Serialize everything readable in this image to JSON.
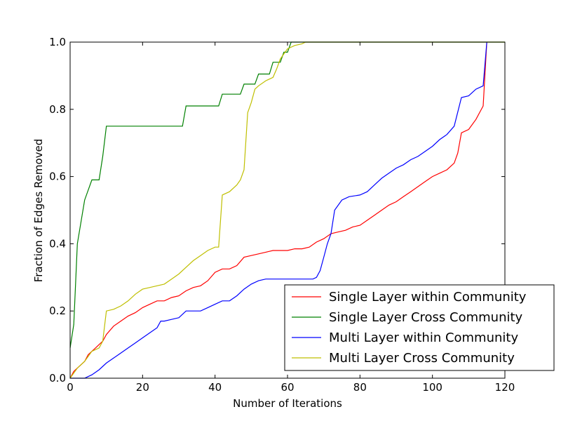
{
  "chart_data": {
    "type": "line",
    "title": "",
    "xlabel": "Number of Iterations",
    "ylabel": "Fraction of Edges Removed",
    "xlim": [
      0,
      120
    ],
    "ylim": [
      0,
      1.0
    ],
    "xticks": [
      0,
      20,
      40,
      60,
      80,
      100,
      120
    ],
    "xtick_labels": [
      "0",
      "20",
      "40",
      "60",
      "80",
      "100",
      "120"
    ],
    "yticks": [
      0.0,
      0.2,
      0.4,
      0.6,
      0.8,
      1.0
    ],
    "ytick_labels": [
      "0.0",
      "0.2",
      "0.4",
      "0.6",
      "0.8",
      "1.0"
    ],
    "grid": false,
    "legend_position": "lower-right",
    "series": [
      {
        "name": "Single Layer within Community",
        "color": "#ff0000",
        "x": [
          0,
          1,
          2,
          3,
          4,
          5,
          6,
          7,
          8,
          9,
          10,
          12,
          14,
          16,
          18,
          20,
          22,
          24,
          26,
          28,
          30,
          32,
          34,
          36,
          38,
          40,
          42,
          44,
          46,
          48,
          50,
          52,
          54,
          56,
          58,
          60,
          62,
          64,
          66,
          68,
          70,
          72,
          74,
          76,
          78,
          80,
          82,
          84,
          86,
          88,
          90,
          92,
          94,
          96,
          98,
          100,
          102,
          104,
          106,
          107,
          108,
          110,
          112,
          114,
          115
        ],
        "y": [
          0.0,
          0.02,
          0.03,
          0.04,
          0.05,
          0.07,
          0.08,
          0.09,
          0.1,
          0.11,
          0.13,
          0.155,
          0.17,
          0.185,
          0.195,
          0.21,
          0.22,
          0.23,
          0.23,
          0.24,
          0.245,
          0.26,
          0.27,
          0.275,
          0.29,
          0.315,
          0.325,
          0.325,
          0.335,
          0.36,
          0.365,
          0.37,
          0.375,
          0.38,
          0.38,
          0.38,
          0.385,
          0.385,
          0.39,
          0.405,
          0.415,
          0.43,
          0.435,
          0.44,
          0.45,
          0.455,
          0.47,
          0.485,
          0.5,
          0.515,
          0.525,
          0.54,
          0.555,
          0.57,
          0.585,
          0.6,
          0.61,
          0.62,
          0.64,
          0.67,
          0.73,
          0.74,
          0.77,
          0.81,
          1.0
        ]
      },
      {
        "name": "Single Layer Cross Community",
        "color": "#008000",
        "x": [
          0,
          1,
          2,
          4,
          6,
          8,
          9,
          10,
          20,
          31,
          32,
          41,
          42,
          47,
          48,
          51,
          52,
          55,
          56,
          58,
          59,
          60,
          61,
          120
        ],
        "y": [
          0.09,
          0.16,
          0.4,
          0.53,
          0.59,
          0.59,
          0.66,
          0.75,
          0.75,
          0.75,
          0.81,
          0.81,
          0.845,
          0.845,
          0.875,
          0.875,
          0.905,
          0.905,
          0.94,
          0.94,
          0.97,
          0.97,
          1.0,
          1.0
        ]
      },
      {
        "name": "Multi Layer within Community",
        "color": "#0000ff",
        "x": [
          0,
          4,
          6,
          8,
          10,
          12,
          14,
          16,
          18,
          20,
          22,
          24,
          25,
          26,
          28,
          30,
          32,
          34,
          36,
          38,
          40,
          42,
          44,
          46,
          48,
          50,
          52,
          54,
          56,
          60,
          64,
          67,
          68,
          69,
          70,
          71,
          72,
          73,
          75,
          77,
          80,
          82,
          84,
          86,
          88,
          90,
          92,
          94,
          96,
          98,
          100,
          102,
          104,
          106,
          108,
          110,
          112,
          114,
          115
        ],
        "y": [
          0.0,
          0.0,
          0.01,
          0.025,
          0.045,
          0.06,
          0.075,
          0.09,
          0.105,
          0.12,
          0.135,
          0.15,
          0.17,
          0.17,
          0.175,
          0.18,
          0.2,
          0.2,
          0.2,
          0.21,
          0.22,
          0.23,
          0.23,
          0.245,
          0.265,
          0.28,
          0.29,
          0.295,
          0.295,
          0.295,
          0.295,
          0.295,
          0.3,
          0.32,
          0.36,
          0.4,
          0.43,
          0.5,
          0.53,
          0.54,
          0.545,
          0.555,
          0.575,
          0.595,
          0.61,
          0.625,
          0.635,
          0.65,
          0.66,
          0.675,
          0.69,
          0.71,
          0.725,
          0.75,
          0.835,
          0.84,
          0.86,
          0.87,
          1.0
        ]
      },
      {
        "name": "Multi Layer Cross Community",
        "color": "#bfbf00",
        "x": [
          0,
          2,
          4,
          6,
          8,
          9,
          10,
          12,
          14,
          16,
          18,
          20,
          22,
          24,
          26,
          28,
          30,
          32,
          34,
          36,
          38,
          40,
          41,
          42,
          44,
          46,
          47,
          48,
          49,
          50,
          51,
          52,
          54,
          56,
          57,
          58,
          60,
          62,
          64,
          65,
          120
        ],
        "y": [
          0.0,
          0.03,
          0.05,
          0.08,
          0.09,
          0.11,
          0.2,
          0.205,
          0.215,
          0.23,
          0.25,
          0.265,
          0.27,
          0.275,
          0.28,
          0.295,
          0.31,
          0.33,
          0.35,
          0.365,
          0.38,
          0.39,
          0.39,
          0.545,
          0.555,
          0.575,
          0.59,
          0.62,
          0.79,
          0.82,
          0.86,
          0.87,
          0.885,
          0.895,
          0.92,
          0.95,
          0.98,
          0.99,
          0.995,
          1.0,
          1.0
        ]
      }
    ]
  }
}
